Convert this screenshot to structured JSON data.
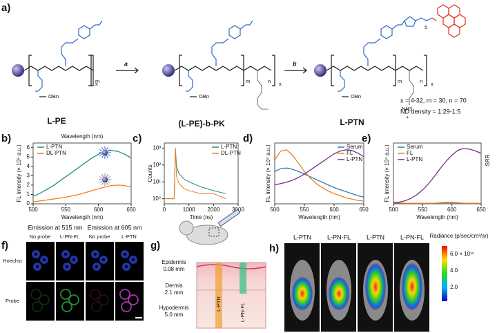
{
  "scheme": {
    "label": "a)",
    "steps": [
      "a",
      "b"
    ],
    "compounds": [
      "L-PE",
      "(L-PE)-b-PK",
      "L-PTN"
    ],
    "groups": {
      "ester": "OBn",
      "amine": "NH3",
      "charge": "+",
      "spacer": "5",
      "repeat_x": "x",
      "repeat_m": "m",
      "repeat_n": "n"
    },
    "notes": [
      "x = 4-32, m = 30, n = 70",
      "ND density = 1:29-1:5"
    ]
  },
  "chart_data": [
    {
      "label": "b)",
      "type": "line",
      "top_label": "Wavelength (nm)",
      "x_label": "Wavelength (nm)",
      "y_label": "FL  Intensity (× 10⁵ a.u.)",
      "x": [
        500,
        510,
        520,
        530,
        540,
        550,
        560,
        570,
        580,
        590,
        600,
        610,
        620,
        630,
        640,
        650
      ],
      "xlim": [
        500,
        650
      ],
      "xticks": [
        500,
        550,
        600,
        650
      ],
      "ylim": [
        0,
        6.5
      ],
      "yticks": [
        0,
        1,
        2,
        3,
        4,
        5,
        6
      ],
      "legend": "top-left",
      "series": [
        {
          "name": "L-PTN",
          "color": "#1a8f80",
          "values": [
            0.8,
            1.1,
            1.5,
            1.9,
            2.4,
            2.9,
            3.4,
            3.9,
            4.4,
            4.9,
            5.3,
            5.6,
            5.7,
            5.6,
            5.3,
            4.9
          ]
        },
        {
          "name": "DL-PTN",
          "color": "#f07f1e",
          "values": [
            0.2,
            0.3,
            0.4,
            0.5,
            0.6,
            0.7,
            0.85,
            1.0,
            1.2,
            1.4,
            1.6,
            1.8,
            1.95,
            2.0,
            1.95,
            1.8
          ]
        }
      ]
    },
    {
      "label": "c)",
      "type": "line",
      "x_label": "Time (ns)",
      "y_label": "Counts",
      "log_y": true,
      "x": [
        0,
        200,
        400,
        450,
        500,
        600,
        800,
        1000,
        1500,
        2000,
        2500
      ],
      "xlim": [
        0,
        3000
      ],
      "xticks": [
        0,
        1000,
        2000,
        3000
      ],
      "ylim": [
        0.5,
        2000
      ],
      "yticks": [
        {
          "value": 1,
          "label": "10⁰"
        },
        {
          "value": 10,
          "label": "10¹"
        },
        {
          "value": 100,
          "label": "10²"
        },
        {
          "value": 1000,
          "label": "10³"
        }
      ],
      "legend": "top-right",
      "series": [
        {
          "name": "L-PTN",
          "color": "#1a8f80",
          "values": [
            1,
            1,
            1,
            1000,
            80,
            30,
            15,
            10,
            5,
            3,
            2
          ]
        },
        {
          "name": "DL-PTN",
          "color": "#f07f1e",
          "values": [
            1,
            1,
            1,
            900,
            20,
            8,
            4,
            3,
            2,
            2,
            1
          ]
        }
      ]
    },
    {
      "label": "d)",
      "type": "line",
      "x_label": "Wavelength (nm)",
      "y_label": "FL  Intensity (× 10⁴ a.u.)",
      "x": [
        500,
        510,
        520,
        530,
        540,
        550,
        560,
        570,
        580,
        590,
        600,
        610,
        620,
        630,
        640,
        650
      ],
      "xlim": [
        500,
        650
      ],
      "xticks": [
        500,
        550,
        600,
        650
      ],
      "ylim": [
        0,
        9
      ],
      "legend": "top-right",
      "series": [
        {
          "name": "Serum",
          "color": "#2b7bba",
          "values": [
            4.8,
            5.2,
            5.3,
            5.1,
            4.8,
            4.4,
            4.0,
            3.6,
            3.2,
            2.8,
            2.4,
            2.1,
            1.8,
            1.5,
            1.2,
            1.0
          ]
        },
        {
          "name": "FL",
          "color": "#f07f1e",
          "values": [
            6.5,
            7.8,
            8.0,
            7.2,
            6.0,
            4.8,
            3.8,
            3.0,
            2.4,
            1.9,
            1.5,
            1.2,
            0.9,
            0.7,
            0.5,
            0.4
          ]
        },
        {
          "name": "L-PTN",
          "color": "#7b2a8e",
          "values": [
            2.8,
            3.0,
            3.2,
            3.5,
            3.9,
            4.4,
            5.0,
            5.6,
            6.2,
            6.8,
            7.4,
            7.8,
            8.0,
            7.9,
            7.5,
            7.0
          ]
        }
      ]
    },
    {
      "label": "e)",
      "type": "line",
      "x_label": "Wavelength (nm)",
      "y_label": "FL  Intensity (× 10⁴ a.u.)",
      "annotation": "SRR",
      "x": [
        500,
        510,
        520,
        530,
        540,
        550,
        560,
        570,
        580,
        590,
        600,
        610,
        620,
        630,
        640,
        650
      ],
      "xlim": [
        500,
        650
      ],
      "xticks": [
        500,
        550,
        600,
        650
      ],
      "ylim": [
        0,
        10
      ],
      "legend": "top-left",
      "series": [
        {
          "name": "Serum",
          "color": "#2b7bba",
          "values": [
            0.1,
            0.1,
            0.1,
            0.1,
            0.1,
            0.1,
            0.1,
            0.1,
            0.15,
            0.2,
            0.2,
            0.15,
            0.1,
            0.1,
            0.1,
            0.1
          ]
        },
        {
          "name": "FL",
          "color": "#f07f1e",
          "values": [
            0.15,
            0.15,
            0.1,
            0.1,
            0.1,
            0.1,
            0.1,
            0.1,
            0.1,
            0.1,
            0.1,
            0.1,
            0.1,
            0.1,
            0.1,
            0.1
          ]
        },
        {
          "name": "L-PTN",
          "color": "#7b2a8e",
          "values": [
            0.2,
            0.3,
            0.5,
            0.9,
            1.5,
            2.3,
            3.3,
            4.5,
            5.8,
            7.0,
            8.0,
            8.8,
            9.1,
            9.0,
            8.7,
            8.3
          ]
        }
      ]
    }
  ],
  "imaging": {
    "label": "f)",
    "emissions": [
      "Emission at 515 nm",
      "Emission at 605 nm"
    ],
    "columns": [
      "No probe",
      "L-PN-FL",
      "No probe",
      "L-PTN"
    ],
    "rows": [
      "Hoechst",
      "Probe"
    ]
  },
  "skin": {
    "label": "g)",
    "layers": [
      {
        "name": "Epidermis",
        "depth": "0.08 mm"
      },
      {
        "name": "Dermis",
        "depth": "2.1 mm"
      },
      {
        "name": "Hypodermis",
        "depth": "5.0 mm"
      }
    ],
    "probes": [
      "L-PTN",
      "L-PN-FL"
    ]
  },
  "invivo": {
    "label": "h)",
    "columns": [
      "L-PTN",
      "L-PN-FL",
      "L-PTN",
      "L-PN-FL"
    ],
    "colorbar_title": "Radiance (p/sec/cm²/sr)",
    "colorbar_ticks": [
      "6.0 × 10¹¹",
      "4.0",
      "2.0"
    ]
  }
}
